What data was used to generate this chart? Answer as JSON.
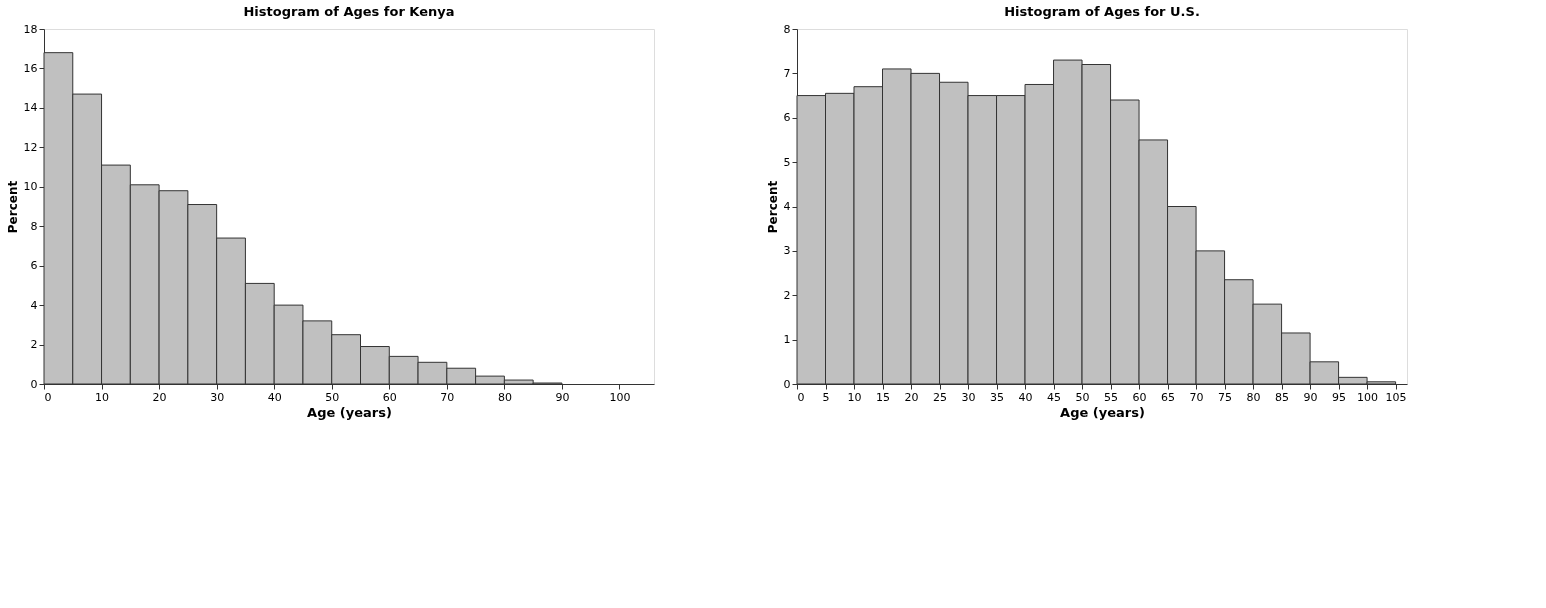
{
  "chart_data": [
    {
      "type": "histogram",
      "title": "Histogram of Ages for Kenya",
      "xlabel": "Age (years)",
      "ylabel": "Percent",
      "color": "#c0c0c0",
      "bins": [
        0,
        5,
        10,
        15,
        20,
        25,
        30,
        35,
        40,
        45,
        50,
        55,
        60,
        65,
        70,
        75,
        80,
        85,
        90
      ],
      "values": [
        16.8,
        14.7,
        11.1,
        10.1,
        9.8,
        9.1,
        7.4,
        5.1,
        4.0,
        3.2,
        2.5,
        1.9,
        1.4,
        1.1,
        0.8,
        0.4,
        0.2,
        0.05
      ],
      "xlim": [
        0,
        106
      ],
      "xticks": [
        0,
        10,
        20,
        30,
        40,
        50,
        60,
        70,
        80,
        90,
        100
      ],
      "ylim": [
        0,
        18
      ],
      "yticks": [
        0,
        2,
        4,
        6,
        8,
        10,
        12,
        14,
        16,
        18
      ],
      "grid": false
    },
    {
      "type": "histogram",
      "title": "Histogram of Ages for U.S.",
      "xlabel": "Age (years)",
      "ylabel": "Percent",
      "color": "#c0c0c0",
      "bins": [
        0,
        5,
        10,
        15,
        20,
        25,
        30,
        35,
        40,
        45,
        50,
        55,
        60,
        65,
        70,
        75,
        80,
        85,
        90,
        95,
        100,
        105
      ],
      "values": [
        6.5,
        6.55,
        6.7,
        7.1,
        7.0,
        6.8,
        6.5,
        6.5,
        6.75,
        7.3,
        7.2,
        6.4,
        5.5,
        4.0,
        3.0,
        2.35,
        1.8,
        1.15,
        0.5,
        0.15,
        0.05
      ],
      "xlim": [
        0,
        107
      ],
      "xticks": [
        0,
        5,
        10,
        15,
        20,
        25,
        30,
        35,
        40,
        45,
        50,
        55,
        60,
        65,
        70,
        75,
        80,
        85,
        90,
        95,
        100,
        105
      ],
      "ylim": [
        0,
        8
      ],
      "yticks": [
        0,
        1,
        2,
        3,
        4,
        5,
        6,
        7,
        8
      ],
      "grid": false
    }
  ]
}
